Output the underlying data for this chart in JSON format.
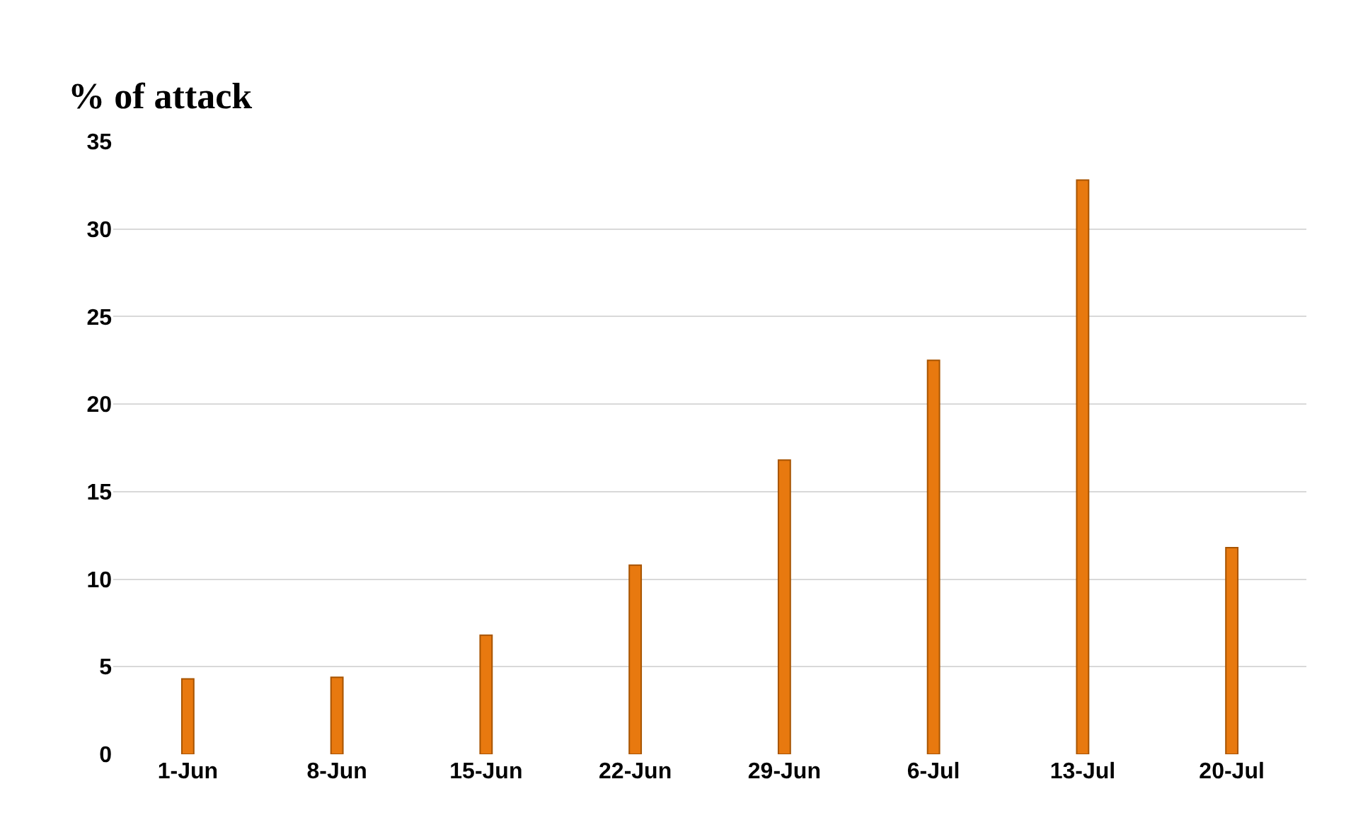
{
  "chart_data": {
    "type": "bar",
    "title": "% of attack",
    "categories": [
      "1-Jun",
      "8-Jun",
      "15-Jun",
      "22-Jun",
      "29-Jun",
      "6-Jul",
      "13-Jul",
      "20-Jul"
    ],
    "values": [
      4.3,
      4.4,
      6.8,
      10.8,
      16.8,
      22.5,
      32.8,
      11.8
    ],
    "color": "#e8790f",
    "ylim": [
      0,
      35
    ],
    "yticks": [
      0,
      5,
      10,
      15,
      20,
      25,
      30,
      35
    ],
    "grid": "y"
  }
}
